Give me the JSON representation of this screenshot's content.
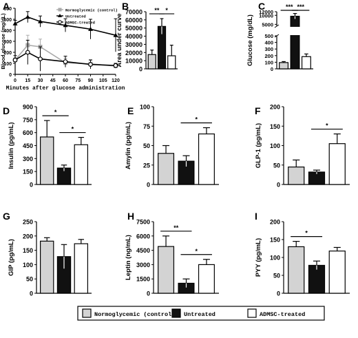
{
  "colors": {
    "control": "#d3d3d3",
    "untreated": "#111111",
    "admsc": "#ffffff",
    "line_control": "#aaaaaa"
  },
  "legend": {
    "items": [
      {
        "key": "control",
        "label": "Normoglycemic (control)"
      },
      {
        "key": "untreated",
        "label": "Untreated"
      },
      {
        "key": "admsc",
        "label": "ADMSC-treated"
      }
    ]
  },
  "chart_data": [
    {
      "panel": "A",
      "type": "line",
      "xlabel": "Minutes after glucose administration",
      "ylabel": "Blood glucose (mg/dL)",
      "x": [
        0,
        15,
        30,
        45,
        60,
        75,
        90,
        105,
        120
      ],
      "xticks": [
        "0",
        "15",
        "30",
        "45",
        "60",
        "75",
        "90",
        "105",
        "120"
      ],
      "ylim": [
        0,
        600
      ],
      "yticks": [
        "0",
        "100",
        "200",
        "300",
        "400",
        "500",
        "600"
      ],
      "series": [
        {
          "name": "Normoglycemic (control)",
          "key": "control",
          "marker": "square",
          "x": [
            0,
            15,
            30,
            60,
            90,
            120
          ],
          "values": [
            130,
            265,
            250,
            105,
            95,
            75
          ],
          "errors": [
            20,
            90,
            70,
            40,
            40,
            20
          ]
        },
        {
          "name": "Untreated",
          "key": "untreated",
          "marker": "triangle",
          "x": [
            0,
            15,
            30,
            60,
            90,
            120
          ],
          "values": [
            460,
            520,
            480,
            445,
            410,
            355
          ],
          "errors": [
            30,
            50,
            50,
            60,
            90,
            150
          ]
        },
        {
          "name": "ADMSC-treated",
          "key": "admsc",
          "marker": "circle",
          "x": [
            0,
            15,
            30,
            60,
            90,
            120
          ],
          "values": [
            130,
            200,
            140,
            115,
            90,
            80
          ],
          "errors": [
            40,
            110,
            110,
            50,
            40,
            20
          ]
        }
      ],
      "legend_labels": [
        "Normoglycemic (control)",
        "Untreated",
        "ADMSC-treated"
      ]
    },
    {
      "panel": "B",
      "type": "bar",
      "ylabel": "Area under curve",
      "ylim": [
        0,
        70000
      ],
      "yticks": [
        "0",
        "10000",
        "20000",
        "30000",
        "40000",
        "50000",
        "60000",
        "70000"
      ],
      "values": [
        17500,
        52000,
        16000
      ],
      "errors": [
        5500,
        9500,
        13000
      ],
      "sig": [
        {
          "from": 0,
          "to": 1,
          "label": "**"
        },
        {
          "from": 1,
          "to": 2,
          "label": "*"
        }
      ]
    },
    {
      "panel": "C",
      "type": "bar",
      "ylabel": "Glucose (mg/dL)",
      "broken_axis": true,
      "lower_ylim": [
        0,
        500
      ],
      "lower_yticks": [
        "0",
        "100",
        "200",
        "300",
        "400",
        "500"
      ],
      "upper_ylim": [
        4000,
        12000
      ],
      "upper_yticks": [
        "5000",
        "10000",
        "12000"
      ],
      "values": [
        95,
        9500,
        185
      ],
      "errors": [
        15,
        1500,
        40
      ],
      "sig": [
        {
          "from": 0,
          "to": 1,
          "label": "***"
        },
        {
          "from": 1,
          "to": 2,
          "label": "***"
        }
      ]
    },
    {
      "panel": "D",
      "type": "bar",
      "ylabel": "Insulin (pg/mL)",
      "ylim": [
        0,
        900
      ],
      "yticks": [
        "0",
        "150",
        "300",
        "450",
        "600",
        "750",
        "900"
      ],
      "values": [
        550,
        190,
        460
      ],
      "errors": [
        190,
        35,
        85
      ],
      "sig": [
        {
          "from": 0,
          "to": 1,
          "label": "*"
        },
        {
          "from": 1,
          "to": 2,
          "label": "*"
        }
      ]
    },
    {
      "panel": "E",
      "type": "bar",
      "ylabel": "Amylin (pg/mL)",
      "ylim": [
        0,
        100
      ],
      "yticks": [
        "0",
        "25",
        "50",
        "75",
        "100"
      ],
      "values": [
        40,
        30,
        65
      ],
      "errors": [
        10,
        7,
        8
      ],
      "sig": [
        {
          "from": 1,
          "to": 2,
          "label": "*"
        }
      ]
    },
    {
      "panel": "F",
      "type": "bar",
      "ylabel": "GLP-1 (pg/mL)",
      "ylim": [
        0,
        200
      ],
      "yticks": [
        "0",
        "50",
        "100",
        "150",
        "200"
      ],
      "values": [
        45,
        32,
        105
      ],
      "errors": [
        18,
        5,
        25
      ],
      "sig": [
        {
          "from": 1,
          "to": 2,
          "label": "*"
        }
      ]
    },
    {
      "panel": "G",
      "type": "bar",
      "ylabel": "GIP (pg/mL)",
      "ylim": [
        0,
        250
      ],
      "yticks": [
        "0",
        "50",
        "100",
        "150",
        "200",
        "250"
      ],
      "values": [
        182,
        128,
        173
      ],
      "errors": [
        12,
        42,
        15
      ],
      "sig": []
    },
    {
      "panel": "H",
      "type": "bar",
      "ylabel": "Leptin (ng/mL)",
      "ylim": [
        0,
        7500
      ],
      "yticks": [
        "0",
        "1500",
        "3000",
        "4500",
        "6000",
        "7500"
      ],
      "values": [
        4900,
        1050,
        3000
      ],
      "errors": [
        1100,
        450,
        550
      ],
      "sig": [
        {
          "from": 0,
          "to": 1,
          "label": "**"
        },
        {
          "from": 1,
          "to": 2,
          "label": "*"
        }
      ]
    },
    {
      "panel": "I",
      "type": "bar",
      "ylabel": "PYY (pg/mL)",
      "ylim": [
        0,
        200
      ],
      "yticks": [
        "0",
        "50",
        "100",
        "150",
        "200"
      ],
      "values": [
        130,
        78,
        118
      ],
      "errors": [
        15,
        12,
        10
      ],
      "sig": [
        {
          "from": 0,
          "to": 1,
          "label": "*"
        }
      ]
    }
  ]
}
